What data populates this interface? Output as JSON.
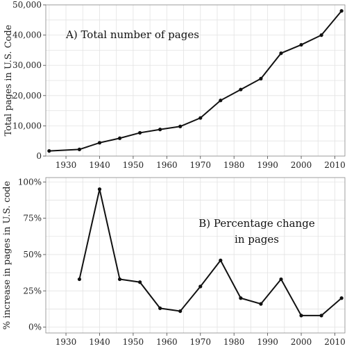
{
  "chart_data": [
    {
      "type": "line",
      "title": "",
      "annotation": [
        "A) Total number of pages"
      ],
      "ylabel": "Total pages in U.S. Code",
      "xlabel": "",
      "xlim": [
        1924,
        2013
      ],
      "ylim": [
        0,
        50000
      ],
      "xticks": [
        1930,
        1940,
        1950,
        1960,
        1970,
        1980,
        1990,
        2000,
        2010
      ],
      "yticks": [
        0,
        10000,
        20000,
        30000,
        40000,
        50000
      ],
      "ytick_labels": [
        "0",
        "10,000",
        "20,000",
        "30,000",
        "40,000",
        "50,000"
      ],
      "grid": true,
      "series": [
        {
          "x": [
            1925,
            1934,
            1940,
            1946,
            1952,
            1958,
            1964,
            1970,
            1976,
            1982,
            1988,
            1994,
            2000,
            2006,
            2012
          ],
          "values": [
            1700,
            2200,
            4400,
            5900,
            7700,
            8800,
            9800,
            12600,
            18400,
            22000,
            25600,
            34000,
            36800,
            40000,
            48000
          ]
        }
      ]
    },
    {
      "type": "line",
      "title": "",
      "annotation": [
        "B) Percentage change",
        "in pages"
      ],
      "ylabel": "% increase in pages in U.S. code",
      "xlabel": "",
      "xlim": [
        1924,
        2013
      ],
      "ylim": [
        -4,
        103
      ],
      "xticks": [
        1930,
        1940,
        1950,
        1960,
        1970,
        1980,
        1990,
        2000,
        2010
      ],
      "yticks": [
        0,
        25,
        50,
        75,
        100
      ],
      "ytick_labels": [
        "0%",
        "25%",
        "50%",
        "75%",
        "100%"
      ],
      "grid": true,
      "series": [
        {
          "x": [
            1934,
            1940,
            1946,
            1952,
            1958,
            1964,
            1970,
            1976,
            1982,
            1988,
            1994,
            2000,
            2006,
            2012
          ],
          "values": [
            33,
            95,
            33,
            31,
            13,
            11,
            28,
            46,
            20,
            16,
            33,
            8,
            8,
            20
          ]
        }
      ]
    }
  ]
}
